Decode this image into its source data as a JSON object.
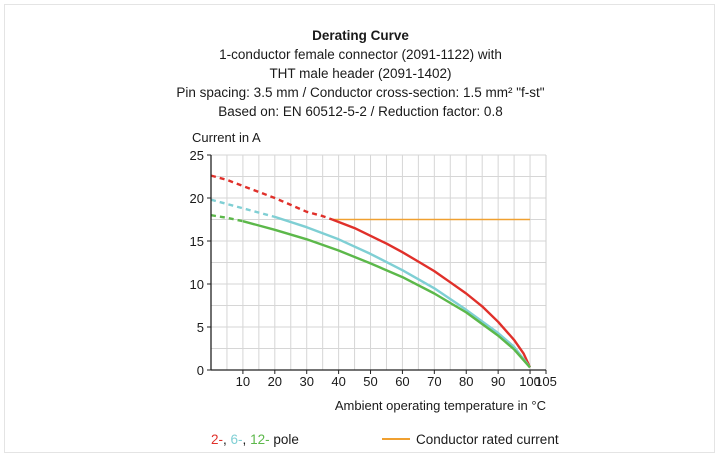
{
  "chart_data": {
    "type": "line",
    "title": "Derating Curve",
    "subtitle_lines": [
      "1-conductor female connector (2091-1122) with",
      "THT male header (2091-1402)",
      "Pin spacing: 3.5 mm / Conductor cross-section: 1.5 mm² \"f-st\"",
      "Based on: EN 60512-5-2 / Reduction factor: 0.8"
    ],
    "ylabel": "Current in A",
    "xlabel": "Ambient operating temperature in °C",
    "xlim": [
      0,
      105
    ],
    "ylim": [
      0,
      25
    ],
    "x_ticks": [
      10,
      20,
      30,
      40,
      50,
      60,
      70,
      80,
      90,
      100,
      105
    ],
    "y_ticks": [
      0,
      5,
      10,
      15,
      20,
      25
    ],
    "grid": true,
    "legend": {
      "pole_parts": [
        {
          "text": "2-",
          "color": "#e0302a"
        },
        {
          "text": ", ",
          "color": "#1a1a1a"
        },
        {
          "text": "6-",
          "color": "#7fcfd4"
        },
        {
          "text": ", ",
          "color": "#1a1a1a"
        },
        {
          "text": "12-",
          "color": "#5cb84a"
        },
        {
          "text": " pole",
          "color": "#1a1a1a"
        }
      ],
      "rated_label": "Conductor rated current",
      "rated_color": "#f0a030"
    },
    "rated_current": {
      "value": 17.5,
      "x_range": [
        38,
        100
      ],
      "color": "#f0a030"
    },
    "series": [
      {
        "color": "#e0302a",
        "dashed": {
          "x": [
            0,
            5,
            10,
            15,
            20,
            25,
            30,
            35,
            38
          ],
          "y": [
            22.6,
            22.1,
            21.4,
            20.7,
            20.0,
            19.2,
            18.4,
            17.9,
            17.5
          ]
        },
        "solid": {
          "x": [
            38,
            45,
            50,
            55,
            60,
            65,
            70,
            75,
            80,
            85,
            90,
            95,
            98,
            100
          ],
          "y": [
            17.5,
            16.5,
            15.6,
            14.7,
            13.7,
            12.6,
            11.5,
            10.2,
            8.9,
            7.4,
            5.6,
            3.5,
            1.9,
            0.3
          ]
        }
      },
      {
        "color": "#7fcfd4",
        "dashed": {
          "x": [
            0,
            5,
            10,
            15,
            20
          ],
          "y": [
            19.8,
            19.3,
            18.8,
            18.3,
            17.8
          ]
        },
        "solid": {
          "x": [
            20,
            30,
            40,
            50,
            60,
            70,
            80,
            90,
            95,
            100
          ],
          "y": [
            17.8,
            16.6,
            15.2,
            13.5,
            11.6,
            9.5,
            7.0,
            4.3,
            2.7,
            0.3
          ]
        }
      },
      {
        "color": "#5cb84a",
        "dashed": {
          "x": [
            0,
            5,
            10
          ],
          "y": [
            18.0,
            17.7,
            17.3
          ]
        },
        "solid": {
          "x": [
            10,
            20,
            30,
            40,
            50,
            60,
            70,
            80,
            90,
            95,
            100
          ],
          "y": [
            17.3,
            16.3,
            15.2,
            13.9,
            12.4,
            10.8,
            8.9,
            6.7,
            4.0,
            2.4,
            0.3
          ]
        }
      }
    ]
  }
}
